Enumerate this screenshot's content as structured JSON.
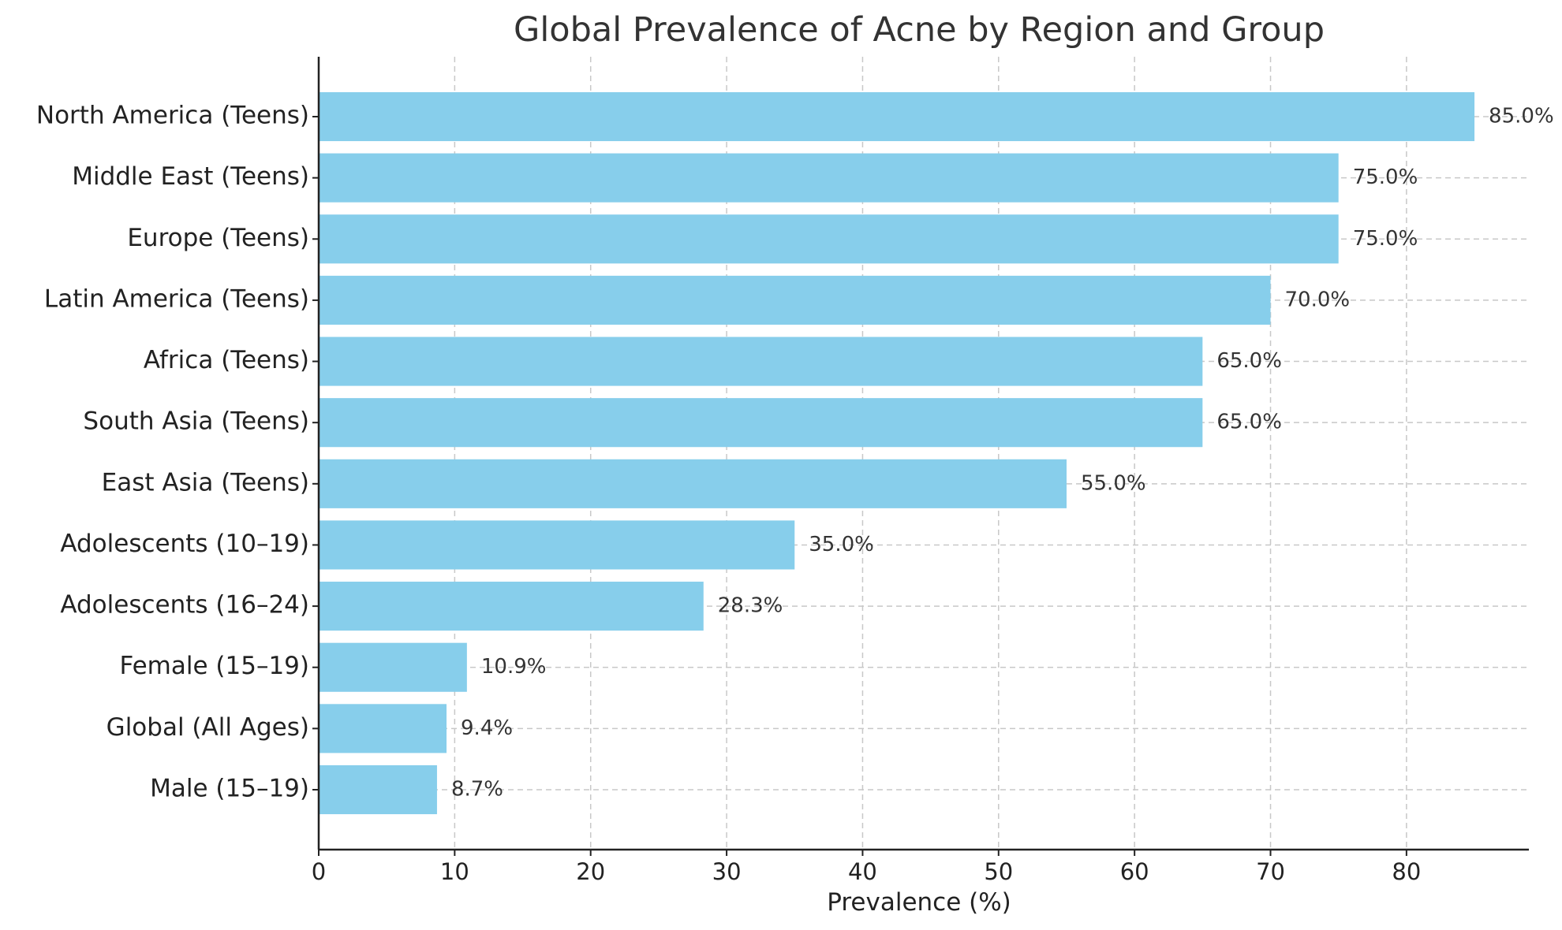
{
  "chart_data": {
    "type": "bar",
    "orientation": "horizontal",
    "title": "Global Prevalence of Acne by Region and Group",
    "xlabel": "Prevalence (%)",
    "ylabel": "",
    "xlim": [
      0,
      89
    ],
    "xticks": [
      0,
      10,
      20,
      30,
      40,
      50,
      60,
      70,
      80
    ],
    "grid": true,
    "bar_color": "#87ceeb",
    "categories": [
      "North America (Teens)",
      "Middle East (Teens)",
      "Europe (Teens)",
      "Latin America (Teens)",
      "Africa (Teens)",
      "South Asia (Teens)",
      "East Asia (Teens)",
      "Adolescents (10–19)",
      "Adolescents (16–24)",
      "Female (15–19)",
      "Global (All Ages)",
      "Male (15–19)"
    ],
    "values": [
      85.0,
      75.0,
      75.0,
      70.0,
      65.0,
      65.0,
      55.0,
      35.0,
      28.3,
      10.9,
      9.4,
      8.7
    ],
    "data_labels": [
      "85.0%",
      "75.0%",
      "75.0%",
      "70.0%",
      "65.0%",
      "65.0%",
      "55.0%",
      "35.0%",
      "28.3%",
      "10.9%",
      "9.4%",
      "8.7%"
    ]
  }
}
